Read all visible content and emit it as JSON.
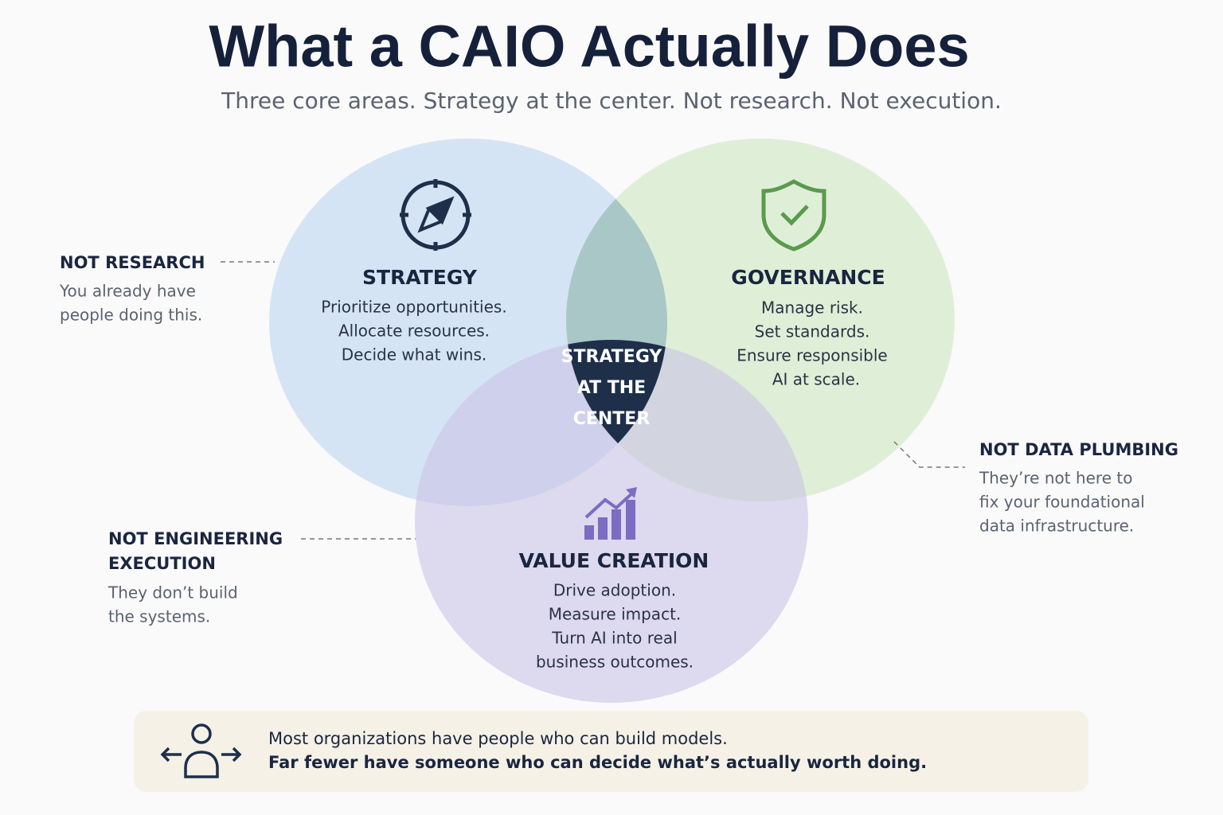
{
  "header": {
    "title": "What a CAIO Actually Does",
    "subtitle": "Three core areas. Strategy at the center. Not research. Not execution."
  },
  "areas": [
    {
      "heading": "STRATEGY",
      "lines": [
        "Prioritize opportunities.",
        "Allocate resources.",
        "Decide what wins."
      ]
    },
    {
      "heading": "GOVERNANCE",
      "lines": [
        "Manage risk.",
        "Set standards.",
        "Ensure responsible",
        "AI at scale."
      ]
    },
    {
      "heading": "VALUE CREATION",
      "lines": [
        "Drive adoption.",
        "Measure impact.",
        "Turn AI into real",
        "business outcomes."
      ]
    }
  ],
  "center": {
    "lines": [
      "STRATEGY",
      "AT THE",
      "CENTER"
    ]
  },
  "notes": [
    {
      "heading": [
        "NOT RESEARCH"
      ],
      "body": [
        "You already have",
        "people doing this."
      ]
    },
    {
      "heading": [
        "NOT DATA PLUMBING"
      ],
      "body": [
        "They’re not here to",
        "fix your foundational",
        "data infrastructure."
      ]
    },
    {
      "heading": [
        "NOT ENGINEERING",
        "EXECUTION"
      ],
      "body": [
        "They don’t build",
        "the systems."
      ]
    }
  ],
  "footer": {
    "lines": [
      "Most organizations have people who can build models.",
      "Far fewer have someone who can decide what’s actually worth doing."
    ]
  }
}
